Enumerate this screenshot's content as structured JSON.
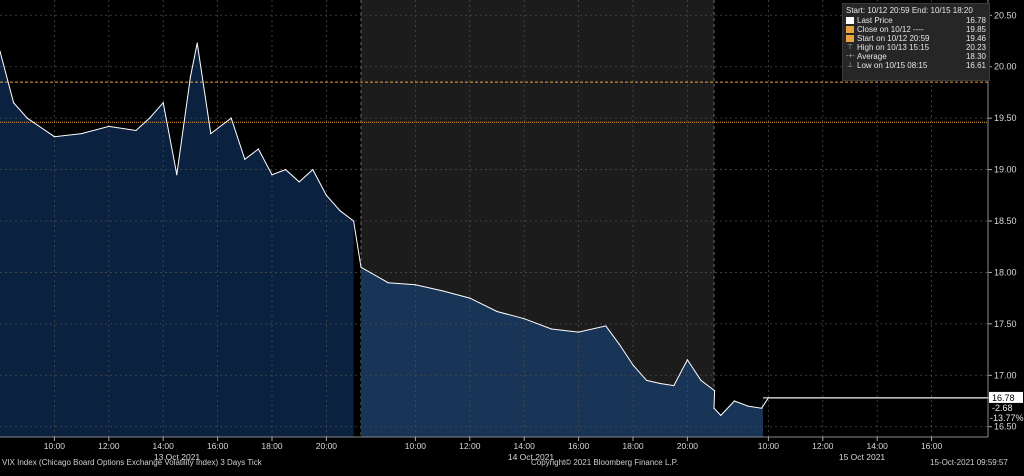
{
  "chart_data": {
    "type": "line",
    "title": "",
    "xlabel": "",
    "ylabel": "",
    "ylim": [
      16.4,
      20.6
    ],
    "y_ticks": [
      "16.50",
      "17.00",
      "17.50",
      "18.00",
      "18.50",
      "19.00",
      "19.50",
      "20.00",
      "20.50"
    ],
    "x_tick_labels": [
      "10:00",
      "12:00",
      "14:00",
      "16:00",
      "18:00",
      "20:00",
      "10:00",
      "12:00",
      "14:00",
      "16:00",
      "18:00",
      "20:00",
      "10:00",
      "12:00",
      "14:00",
      "16:00"
    ],
    "date_labels": [
      "13 Oct 2021",
      "14 Oct 2021",
      "15 Oct 2021"
    ],
    "grid": true,
    "reference_lines": [
      {
        "name": "Close on 10/12",
        "value": 19.85,
        "color": "#e8a33c"
      },
      {
        "name": "Start on 10/12 20:59",
        "value": 19.46,
        "color": "#e8a33c"
      }
    ],
    "series": [
      {
        "name": "Last Price",
        "x": [
          "10/13 08:00",
          "10/13 08:30",
          "10/13 09:00",
          "10/13 10:00",
          "10/13 11:00",
          "10/13 12:00",
          "10/13 13:00",
          "10/13 13:30",
          "10/13 14:00",
          "10/13 14:30",
          "10/13 15:00",
          "10/13 15:15",
          "10/13 15:45",
          "10/13 16:30",
          "10/13 17:00",
          "10/13 17:30",
          "10/13 18:00",
          "10/13 18:30",
          "10/13 19:00",
          "10/13 19:30",
          "10/13 20:00",
          "10/13 20:30",
          "10/13 21:00",
          "10/14 08:00",
          "10/14 09:00",
          "10/14 10:00",
          "10/14 11:00",
          "10/14 12:00",
          "10/14 13:00",
          "10/14 14:00",
          "10/14 15:00",
          "10/14 16:00",
          "10/14 17:00",
          "10/14 17:30",
          "10/14 18:00",
          "10/14 18:30",
          "10/14 19:00",
          "10/14 19:30",
          "10/14 20:00",
          "10/14 20:30",
          "10/14 21:00",
          "10/15 08:00",
          "10/15 08:15",
          "10/15 08:45",
          "10/15 09:15",
          "10/15 09:45",
          "10/15 10:00",
          "10/15 18:20"
        ],
        "values": [
          20.15,
          19.65,
          19.5,
          19.32,
          19.35,
          19.42,
          19.38,
          19.5,
          19.65,
          18.95,
          19.9,
          20.23,
          19.35,
          19.5,
          19.1,
          19.2,
          18.95,
          19.0,
          18.88,
          19.0,
          18.75,
          18.6,
          18.5,
          18.05,
          17.9,
          17.88,
          17.82,
          17.75,
          17.62,
          17.55,
          17.45,
          17.42,
          17.48,
          17.3,
          17.1,
          16.95,
          16.92,
          16.9,
          17.15,
          16.95,
          16.85,
          16.68,
          16.61,
          16.75,
          16.7,
          16.68,
          16.78,
          16.78
        ],
        "color": "#ffffff",
        "fill": "#0e2848"
      }
    ],
    "right_labels": {
      "last": "16.78",
      "change": "-2.68",
      "pct_change": "-13.77%"
    }
  },
  "legend": {
    "header": "Start: 10/12 20:59 End: 10/15 18:20",
    "rows": [
      {
        "label": "Last Price",
        "value": "16.78",
        "swatch": "#ffffff",
        "glyph": ""
      },
      {
        "label": "Close on 10/12 ----",
        "value": "19.85",
        "swatch": "#e8a33c",
        "glyph": ""
      },
      {
        "label": "Start on 10/12 20:59",
        "value": "19.46",
        "swatch": "#e8a33c",
        "glyph": ""
      },
      {
        "label": "High on 10/13 15:15",
        "value": "20.23",
        "swatch": "",
        "glyph": "⊤"
      },
      {
        "label": "Average",
        "value": "18.30",
        "swatch": "",
        "glyph": "-+-"
      },
      {
        "label": "Low on 10/15 08:15",
        "value": "16.61",
        "swatch": "",
        "glyph": "⊥"
      }
    ]
  },
  "footer": {
    "left": "VIX Index (Chicago Board Options Exchange Volatility Index) 3 Days  Tick",
    "center": "Copyright© 2021 Bloomberg Finance L.P.",
    "right": "15-Oct-2021 09:59:57"
  },
  "colors": {
    "background": "#000000",
    "session_shade": "#1c1c1c",
    "area_fill_dark": "#0b2140",
    "area_fill_light": "#183456",
    "grid": "#4a4a4a",
    "reference": "#e8a33c"
  }
}
